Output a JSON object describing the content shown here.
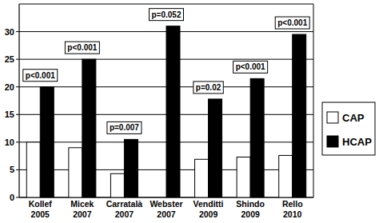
{
  "chart_data": {
    "type": "bar",
    "categories": [
      "Kollef 2005",
      "Micek 2007",
      "Carratalà 2007",
      "Webster 2007",
      "Venditti 2009",
      "Shindo 2009",
      "Rello 2010"
    ],
    "series": [
      {
        "name": "CAP",
        "color": "#ffffff",
        "values": [
          10,
          9,
          4.3,
          0,
          6.9,
          7.3,
          7.6
        ]
      },
      {
        "name": "HCAP",
        "color": "#000000",
        "values": [
          20,
          25,
          10.5,
          31,
          17.8,
          21.5,
          29.5
        ]
      }
    ],
    "annotations": [
      "p<0.001",
      "p<0.001",
      "p=0.007",
      "p=0.052",
      "p=0.02",
      "p<0.001",
      "p<0.001"
    ],
    "ylim": [
      0,
      35
    ],
    "yticks": [
      0,
      5,
      10,
      15,
      20,
      25,
      30
    ],
    "grid": true,
    "legend": "right"
  }
}
